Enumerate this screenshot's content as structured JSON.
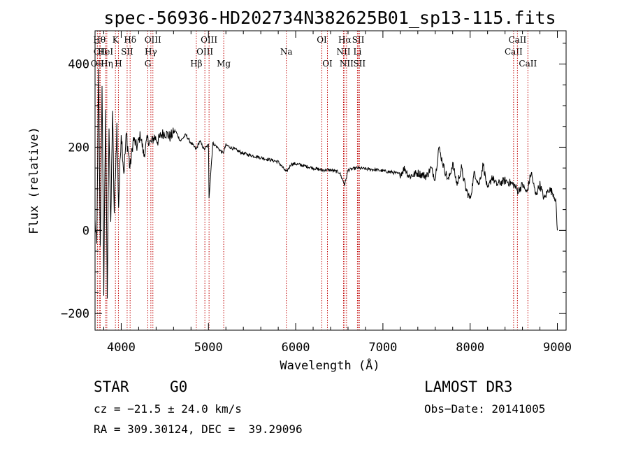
{
  "chart_data": {
    "type": "line",
    "title": "spec-56936-HD202734N382625B01_sp13-115.fits",
    "xlabel": "Wavelength (Å)",
    "ylabel": "Flux (relative)",
    "xlim": [
      3700,
      9100
    ],
    "ylim": [
      -240,
      480
    ],
    "x_ticks": [
      4000,
      5000,
      6000,
      7000,
      8000,
      9000
    ],
    "x_tick_labels": [
      "4000",
      "5000",
      "6000",
      "7000",
      "8000",
      "9000"
    ],
    "y_ticks": [
      -200,
      0,
      200,
      400
    ],
    "y_tick_labels": [
      "−200",
      "0",
      "200",
      "400"
    ],
    "grid": false,
    "series": [
      {
        "name": "spectrum",
        "x": [
          3700,
          3720,
          3740,
          3760,
          3780,
          3800,
          3820,
          3840,
          3860,
          3880,
          3900,
          3920,
          3950,
          3970,
          4000,
          4030,
          4060,
          4100,
          4140,
          4180,
          4220,
          4260,
          4300,
          4340,
          4380,
          4420,
          4460,
          4500,
          4560,
          4620,
          4680,
          4740,
          4800,
          4861,
          4900,
          4950,
          5000,
          5007,
          5050,
          5100,
          5167,
          5200,
          5300,
          5400,
          5500,
          5600,
          5700,
          5800,
          5893,
          5950,
          6000,
          6100,
          6200,
          6300,
          6400,
          6500,
          6563,
          6600,
          6700,
          6800,
          6900,
          7000,
          7100,
          7200,
          7250,
          7300,
          7400,
          7500,
          7550,
          7600,
          7640,
          7700,
          7750,
          7800,
          7850,
          7900,
          7950,
          8000,
          8050,
          8100,
          8150,
          8200,
          8250,
          8300,
          8400,
          8500,
          8550,
          8600,
          8650,
          8700,
          8750,
          8800,
          8850,
          8900,
          8950,
          8980,
          9000
        ],
        "values": [
          20,
          -40,
          380,
          -50,
          360,
          -140,
          300,
          -160,
          260,
          0,
          290,
          40,
          250,
          60,
          240,
          140,
          230,
          150,
          220,
          200,
          230,
          180,
          220,
          210,
          225,
          215,
          230,
          235,
          225,
          240,
          215,
          230,
          210,
          195,
          215,
          195,
          205,
          80,
          210,
          200,
          185,
          205,
          195,
          185,
          180,
          175,
          170,
          165,
          140,
          160,
          160,
          155,
          150,
          145,
          145,
          140,
          110,
          145,
          150,
          148,
          146,
          143,
          140,
          135,
          150,
          130,
          138,
          130,
          150,
          125,
          200,
          150,
          120,
          160,
          110,
          150,
          100,
          75,
          140,
          110,
          160,
          95,
          130,
          110,
          120,
          110,
          95,
          110,
          90,
          140,
          85,
          110,
          75,
          100,
          90,
          75,
          0
        ]
      }
    ],
    "line_markers": [
      {
        "label": "OII",
        "x": 3727,
        "row": 3
      },
      {
        "label": "Hθ",
        "x": 3750,
        "row": 1
      },
      {
        "label": "OII",
        "x": 3760,
        "row": 2
      },
      {
        "label": "HeI",
        "x": 3820,
        "row": 2
      },
      {
        "label": "Hη",
        "x": 3835,
        "row": 3
      },
      {
        "label": "K",
        "x": 3934,
        "row": 1
      },
      {
        "label": "H",
        "x": 3968,
        "row": 3
      },
      {
        "label": "SII",
        "x": 4068,
        "row": 2
      },
      {
        "label": "Hδ",
        "x": 4102,
        "row": 1
      },
      {
        "label": "G",
        "x": 4305,
        "row": 3
      },
      {
        "label": "Hγ",
        "x": 4340,
        "row": 2
      },
      {
        "label": "OIII",
        "x": 4363,
        "row": 1
      },
      {
        "label": "Hβ",
        "x": 4861,
        "row": 3
      },
      {
        "label": "OIII",
        "x": 4959,
        "row": 2
      },
      {
        "label": "OIII",
        "x": 5007,
        "row": 1
      },
      {
        "label": "Mg",
        "x": 5175,
        "row": 3
      },
      {
        "label": "Na",
        "x": 5893,
        "row": 2
      },
      {
        "label": "OI",
        "x": 6300,
        "row": 1
      },
      {
        "label": "OI",
        "x": 6364,
        "row": 3
      },
      {
        "label": "NII",
        "x": 6548,
        "row": 2
      },
      {
        "label": "Hα",
        "x": 6563,
        "row": 1
      },
      {
        "label": "NII",
        "x": 6583,
        "row": 3
      },
      {
        "label": "Li",
        "x": 6708,
        "row": 2
      },
      {
        "label": "SII",
        "x": 6717,
        "row": 1
      },
      {
        "label": "SII",
        "x": 6731,
        "row": 3
      },
      {
        "label": "CaII",
        "x": 8498,
        "row": 2
      },
      {
        "label": "CaII",
        "x": 8542,
        "row": 1
      },
      {
        "label": "CaII",
        "x": 8662,
        "row": 3
      }
    ],
    "marker_color": "#c00000"
  },
  "info": {
    "class": "STAR",
    "subclass": "G0",
    "survey": "LAMOST DR3",
    "cz": "cz = −21.5 ± 24.0 km/s",
    "obs_date": "Obs−Date: 20141005",
    "coords": "RA = 309.30124, DEC =  39.29096"
  }
}
